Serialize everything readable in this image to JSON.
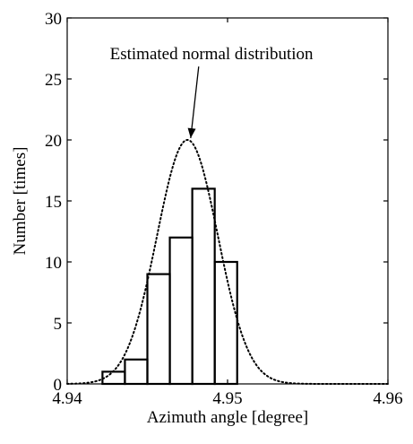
{
  "chart_data": {
    "type": "bar",
    "title": "",
    "xlabel": "Azimuth angle [degree]",
    "ylabel": "Number [times]",
    "xlim": [
      4.94,
      4.96
    ],
    "ylim": [
      0,
      30
    ],
    "grid": false,
    "x_ticks": [
      {
        "value": 4.94,
        "label": "4.94"
      },
      {
        "value": 4.95,
        "label": "4.95"
      },
      {
        "value": 4.96,
        "label": "4.96"
      }
    ],
    "y_ticks": [
      {
        "value": 0,
        "label": "0"
      },
      {
        "value": 5,
        "label": "5"
      },
      {
        "value": 10,
        "label": "10"
      },
      {
        "value": 15,
        "label": "15"
      },
      {
        "value": 20,
        "label": "20"
      },
      {
        "value": 25,
        "label": "25"
      },
      {
        "value": 30,
        "label": "30"
      }
    ],
    "bins": [
      {
        "x0": 4.9422,
        "x1": 4.9436,
        "count": 1
      },
      {
        "x0": 4.9436,
        "x1": 4.945,
        "count": 2
      },
      {
        "x0": 4.945,
        "x1": 4.9464,
        "count": 9
      },
      {
        "x0": 4.9464,
        "x1": 4.9478,
        "count": 12
      },
      {
        "x0": 4.9478,
        "x1": 4.9492,
        "count": 16
      },
      {
        "x0": 4.9492,
        "x1": 4.9506,
        "count": 10
      }
    ],
    "normal_curve": {
      "mean": 4.9475,
      "std": 0.0019,
      "peak": 20
    },
    "annotation": {
      "text": "Estimated normal distribution",
      "x": 4.949,
      "y": 26.6,
      "arrow_to": {
        "x": 4.9477,
        "y": 20
      }
    }
  }
}
